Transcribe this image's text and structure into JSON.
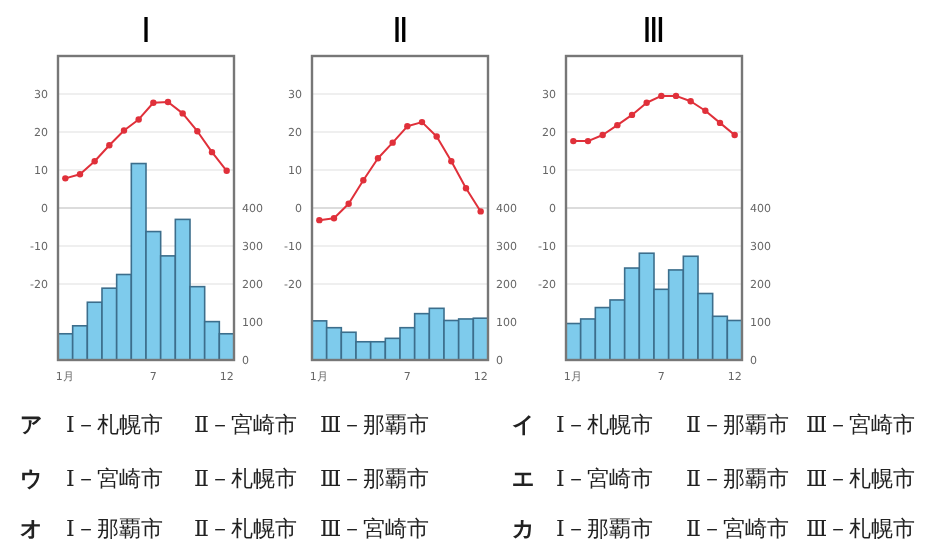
{
  "chart_data": [
    {
      "type": "bar",
      "title": "Ⅰ",
      "categories": [
        "1月",
        null,
        null,
        null,
        null,
        null,
        "7",
        null,
        null,
        null,
        null,
        "12"
      ],
      "ylim": [
        -40,
        40
      ],
      "yticks": [
        -20,
        -10,
        0,
        10,
        20,
        30
      ],
      "y2lim": [
        0,
        800
      ],
      "y2ticks": [
        0,
        100,
        200,
        300,
        400
      ],
      "grid": "y",
      "series": [
        {
          "type": "bar",
          "axis": "y2",
          "color": "#7ecbec",
          "values": [
            69,
            90,
            152,
            189,
            225,
            517,
            338,
            274,
            370,
            193,
            101,
            69
          ]
        },
        {
          "type": "line",
          "color": "#e0303a",
          "marker": "circle",
          "values": [
            7.8,
            8.9,
            12.3,
            16.5,
            20.4,
            23.3,
            27.7,
            27.9,
            24.9,
            20.2,
            14.7,
            9.8
          ]
        }
      ]
    },
    {
      "type": "bar",
      "title": "Ⅱ",
      "categories": [
        "1月",
        null,
        null,
        null,
        null,
        null,
        "7",
        null,
        null,
        null,
        null,
        "12"
      ],
      "ylim": [
        -40,
        40
      ],
      "yticks": [
        -20,
        -10,
        0,
        10,
        20,
        30
      ],
      "y2lim": [
        0,
        800
      ],
      "y2ticks": [
        0,
        100,
        200,
        300,
        400
      ],
      "grid": "y",
      "series": [
        {
          "type": "bar",
          "axis": "y2",
          "color": "#7ecbec",
          "values": [
            103,
            85,
            73,
            48,
            48,
            57,
            85,
            122,
            136,
            104,
            108,
            110
          ]
        },
        {
          "type": "line",
          "color": "#e0303a",
          "marker": "circle",
          "values": [
            -3.2,
            -2.7,
            1.1,
            7.3,
            13.1,
            17.2,
            21.5,
            22.6,
            18.8,
            12.3,
            5.2,
            -0.9
          ]
        }
      ]
    },
    {
      "type": "bar",
      "title": "Ⅲ",
      "categories": [
        "1月",
        null,
        null,
        null,
        null,
        null,
        "7",
        null,
        null,
        null,
        null,
        "12"
      ],
      "ylim": [
        -40,
        40
      ],
      "yticks": [
        -20,
        -10,
        0,
        10,
        20,
        30
      ],
      "y2lim": [
        0,
        800
      ],
      "y2ticks": [
        0,
        100,
        200,
        300,
        400
      ],
      "grid": "y",
      "series": [
        {
          "type": "bar",
          "axis": "y2",
          "color": "#7ecbec",
          "values": [
            96,
            108,
            138,
            158,
            242,
            281,
            186,
            237,
            273,
            175,
            115,
            104
          ]
        },
        {
          "type": "line",
          "color": "#e0303a",
          "marker": "circle",
          "values": [
            17.6,
            17.6,
            19.2,
            21.8,
            24.5,
            27.7,
            29.5,
            29.5,
            28.1,
            25.6,
            22.4,
            19.2
          ]
        }
      ]
    },
    {
      "type": "other",
      "annotations": [
        "ア",
        "Ⅰ－札幌市",
        "Ⅱ－宮崎市",
        "Ⅲ－那覇市",
        "イ",
        "Ⅰ－札幌市",
        "Ⅱ－那覇市",
        "Ⅲ－宮崎市",
        "ウ",
        "Ⅰ－宮崎市",
        "Ⅱ－札幌市",
        "Ⅲ－那覇市",
        "エ",
        "Ⅰ－宮崎市",
        "Ⅱ－那覇市",
        "Ⅲ－札幌市",
        "オ",
        "Ⅰ－那覇市",
        "Ⅱ－札幌市",
        "Ⅲ－宮崎市",
        "カ",
        "Ⅰ－那覇市",
        "Ⅱ－宮崎市",
        "Ⅲ－札幌市"
      ]
    }
  ]
}
